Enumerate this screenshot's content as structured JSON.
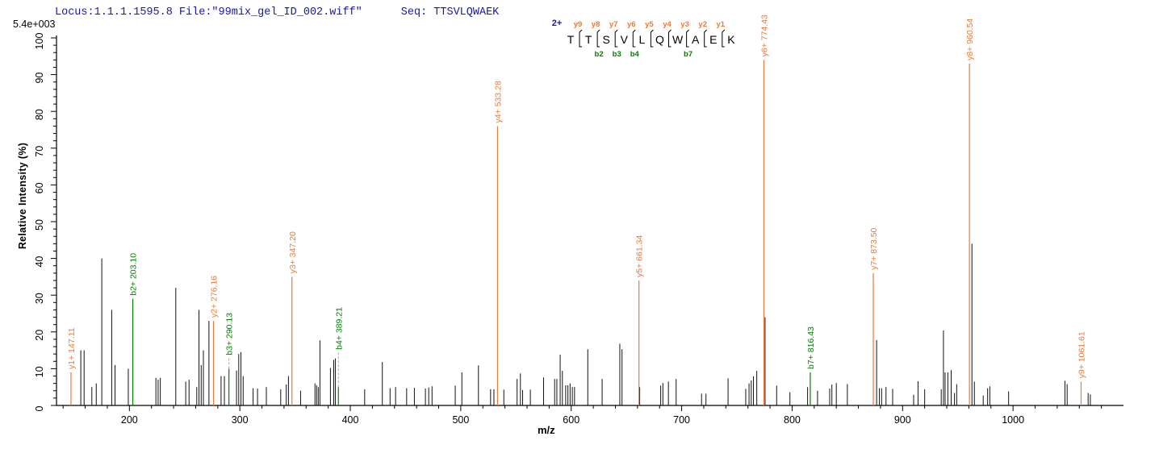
{
  "header": {
    "locus_file": "Locus:1.1.1.1595.8 File:\"99mix_gel_ID_002.wiff\"",
    "seq_label": "Seq: TTSVLQWAEK",
    "max_intensity": "5.4e+003"
  },
  "axes": {
    "y_label": "Relative  Intensity (%)",
    "x_label": "m/z"
  },
  "peptide": {
    "charge_label": "2+",
    "residues": [
      "T",
      "T",
      "S",
      "V",
      "L",
      "Q",
      "W",
      "A",
      "E",
      "K"
    ],
    "separators": [
      {
        "y": "y9",
        "b": null
      },
      {
        "y": "y8",
        "b": "b2"
      },
      {
        "y": "y7",
        "b": "b3"
      },
      {
        "y": "y6",
        "b": "b4"
      },
      {
        "y": "y5",
        "b": null
      },
      {
        "y": "y4",
        "b": null
      },
      {
        "y": "y3",
        "b": "b7"
      },
      {
        "y": "y2",
        "b": null
      },
      {
        "y": "y1",
        "b": null
      }
    ]
  },
  "colors": {
    "y_ion": "#f07838",
    "b_ion": "#008000",
    "peak": "#111111",
    "title_blue": "#1717b5",
    "dashed_leader": "#aaaaaa",
    "axis": "#000000"
  },
  "chart_data": {
    "type": "bar",
    "subtype": "ms2-fragment-stick-spectrum",
    "title": "",
    "xlabel": "m/z",
    "ylabel": "Relative  Intensity (%)",
    "xlim": [
      134,
      1100
    ],
    "ylim": [
      0,
      100
    ],
    "x_major_ticks": [
      200,
      300,
      400,
      500,
      600,
      700,
      800,
      900,
      1000
    ],
    "x_minor_step": 20,
    "y_major_step": 10,
    "y_minor_step": 2,
    "max_intensity_counts": "5.4e+003",
    "legend": "none",
    "grid": false,
    "labeled_peaks": [
      {
        "label": "y1+ 147.11",
        "mz": 147.11,
        "intensity": 9,
        "ion": "y"
      },
      {
        "label": "b2+ 203.10",
        "mz": 203.1,
        "intensity": 29,
        "ion": "b"
      },
      {
        "label": "y2+ 276.16",
        "mz": 276.16,
        "intensity": 23,
        "ion": "y"
      },
      {
        "label": "b3+ 290.13",
        "mz": 290.13,
        "intensity": 10,
        "ion": "b",
        "dashed_to": 13
      },
      {
        "label": "y3+ 347.20",
        "mz": 347.2,
        "intensity": 35,
        "ion": "y"
      },
      {
        "label": "b4+ 389.21",
        "mz": 389.21,
        "intensity": 5,
        "ion": "b",
        "dashed_to": 14.5
      },
      {
        "label": "y4+ 533.28",
        "mz": 533.28,
        "intensity": 76,
        "ion": "y"
      },
      {
        "label": "y5+ 661.34",
        "mz": 661.34,
        "intensity": 34,
        "ion": "y"
      },
      {
        "label": "y6+ 774.43",
        "mz": 774.43,
        "intensity": 94,
        "ion": "y"
      },
      {
        "label": "b7+ 816.43",
        "mz": 816.43,
        "intensity": 9,
        "ion": "b"
      },
      {
        "label": "y7+ 873.50",
        "mz": 873.5,
        "intensity": 36,
        "ion": "y"
      },
      {
        "label": "y8+ 960.54",
        "mz": 960.54,
        "intensity": 93,
        "ion": "y"
      },
      {
        "label": "y9+ 1061.61",
        "mz": 1061.61,
        "intensity": 6.5,
        "ion": "y"
      }
    ],
    "background_peaks": [
      [
        156,
        15
      ],
      [
        159,
        15
      ],
      [
        166,
        5
      ],
      [
        170,
        6
      ],
      [
        175,
        40
      ],
      [
        184,
        26
      ],
      [
        187,
        11
      ],
      [
        199,
        10
      ],
      [
        224,
        7.5
      ],
      [
        226,
        7
      ],
      [
        228,
        7.5
      ],
      [
        242,
        32
      ],
      [
        251,
        6.5
      ],
      [
        254,
        7
      ],
      [
        261,
        5
      ],
      [
        263,
        26
      ],
      [
        265,
        11
      ],
      [
        267,
        15
      ],
      [
        272,
        23
      ],
      [
        283,
        8
      ],
      [
        286,
        8
      ],
      [
        297,
        9.5
      ],
      [
        299,
        14
      ],
      [
        301,
        14.5
      ],
      [
        303,
        8
      ],
      [
        312,
        4.7
      ],
      [
        316,
        4.6
      ],
      [
        324,
        5
      ],
      [
        337,
        4.4
      ],
      [
        342,
        5.7
      ],
      [
        344,
        8
      ],
      [
        355,
        4
      ],
      [
        368,
        6
      ],
      [
        369.5,
        5.5
      ],
      [
        371,
        5
      ],
      [
        372.5,
        17.7
      ],
      [
        382,
        10.2
      ],
      [
        385,
        12.4
      ],
      [
        386.5,
        12.8
      ],
      [
        413,
        4.4
      ],
      [
        429,
        11.8
      ],
      [
        436,
        4.7
      ],
      [
        441,
        5
      ],
      [
        451,
        4.7
      ],
      [
        458,
        4.8
      ],
      [
        468,
        4.6
      ],
      [
        471,
        4.9
      ],
      [
        474,
        5.2
      ],
      [
        495,
        5.4
      ],
      [
        501,
        9
      ],
      [
        516,
        10.9
      ],
      [
        527,
        4.4
      ],
      [
        530,
        4.4
      ],
      [
        539,
        4.3
      ],
      [
        551,
        7.2
      ],
      [
        554,
        8.7
      ],
      [
        556,
        4.2
      ],
      [
        563,
        4.3
      ],
      [
        575,
        7.6
      ],
      [
        585,
        7.2
      ],
      [
        587,
        7.2
      ],
      [
        590,
        13.8
      ],
      [
        592,
        9.4
      ],
      [
        595,
        5.5
      ],
      [
        597,
        5.5
      ],
      [
        599,
        6
      ],
      [
        601,
        5
      ],
      [
        603,
        5
      ],
      [
        615,
        15.3
      ],
      [
        628,
        7.2
      ],
      [
        644,
        16.8
      ],
      [
        646,
        15.3
      ],
      [
        662,
        5
      ],
      [
        681,
        5.4
      ],
      [
        683,
        6.1
      ],
      [
        688,
        6.5
      ],
      [
        695,
        7.2
      ],
      [
        718,
        3.2
      ],
      [
        722,
        3.2
      ],
      [
        742,
        7.4
      ],
      [
        758,
        4.5
      ],
      [
        761,
        6
      ],
      [
        763,
        6.8
      ],
      [
        765,
        7.9
      ],
      [
        768,
        9.4
      ],
      [
        775.5,
        24
      ],
      [
        786,
        5.4
      ],
      [
        798,
        3.6
      ],
      [
        814,
        5
      ],
      [
        823,
        4
      ],
      [
        834,
        4.6
      ],
      [
        836,
        5.7
      ],
      [
        840,
        6.1
      ],
      [
        850,
        5.8
      ],
      [
        876.5,
        17.8
      ],
      [
        879,
        4.7
      ],
      [
        881,
        4.7
      ],
      [
        885,
        5
      ],
      [
        891,
        4.5
      ],
      [
        910,
        2.9
      ],
      [
        914,
        6.6
      ],
      [
        920,
        4.4
      ],
      [
        935,
        4.4
      ],
      [
        937,
        20.4
      ],
      [
        938.5,
        9
      ],
      [
        941,
        9
      ],
      [
        944,
        9.6
      ],
      [
        947,
        3.4
      ],
      [
        949,
        5.8
      ],
      [
        962.8,
        44
      ],
      [
        965,
        6.5
      ],
      [
        973,
        2.7
      ],
      [
        977,
        4.7
      ],
      [
        979,
        5.2
      ],
      [
        996,
        3.8
      ],
      [
        1047,
        6.7
      ],
      [
        1049,
        5.8
      ],
      [
        1068,
        3.4
      ],
      [
        1070,
        3
      ]
    ]
  }
}
